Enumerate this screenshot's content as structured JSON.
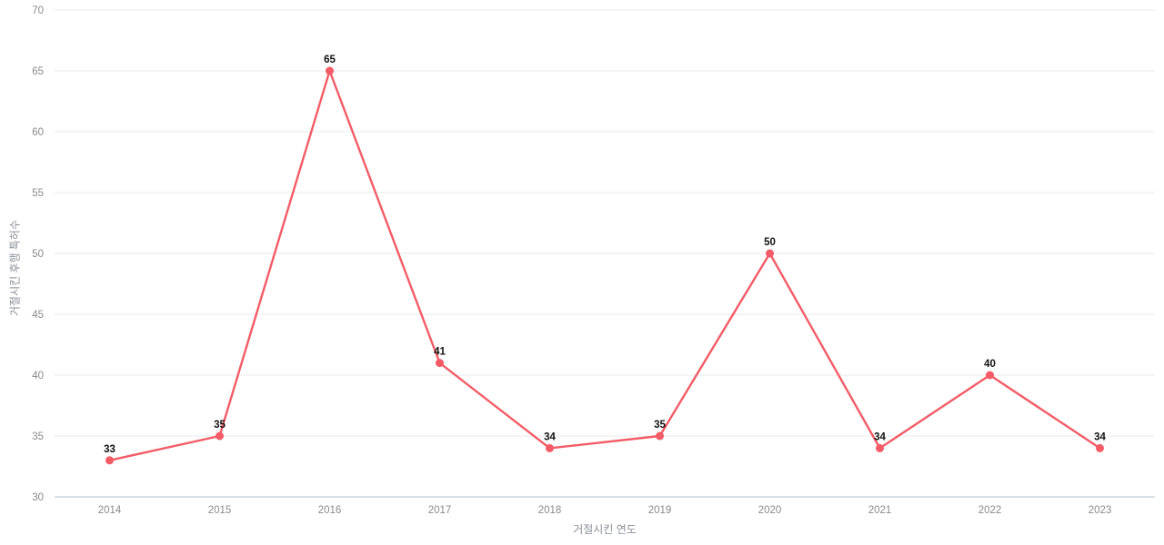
{
  "chart_data": {
    "type": "line",
    "title": "",
    "categories": [
      "2014",
      "2015",
      "2016",
      "2017",
      "2018",
      "2019",
      "2020",
      "2021",
      "2022",
      "2023"
    ],
    "series": [
      {
        "name": "거절시킨 후행 특허수",
        "values": [
          33,
          35,
          65,
          41,
          34,
          35,
          50,
          34,
          40,
          34
        ],
        "color": "#f35c66"
      }
    ],
    "xlabel": "거절시킨 연도",
    "ylabel": "거절시킨 후행 특허수",
    "ylim": [
      30,
      70
    ],
    "ytick_step": 5,
    "yticks": [
      30,
      35,
      40,
      45,
      50,
      55,
      60,
      65,
      70
    ],
    "grid": "horizontal-only",
    "legend_position": "none",
    "point_labels_visible": true
  },
  "style": {
    "background_color": "#ffffff",
    "grid_color": "#e9e9e9",
    "axis_line_color": "#ccd6e0",
    "tick_label_color": "#8a8a8a",
    "point_label_color": "#111111",
    "line_width": 2.4,
    "marker_radius": 4.5
  }
}
